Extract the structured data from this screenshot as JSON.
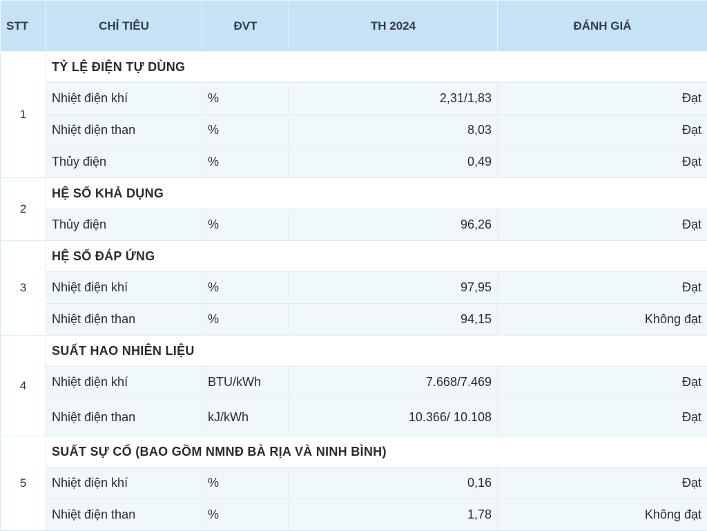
{
  "headers": {
    "stt": "STT",
    "chi_tieu": "CHỈ TIÊU",
    "dvt": "ĐVT",
    "th2024": "TH 2024",
    "danh_gia": "ĐÁNH GIÁ"
  },
  "groups": [
    {
      "stt": "1",
      "title": "TỶ LỆ ĐIỆN TỰ DÙNG",
      "rows": [
        {
          "name": "Nhiệt điện khí",
          "unit": "%",
          "value": "2,31/1,83",
          "eval": "Đạt"
        },
        {
          "name": "Nhiệt điện than",
          "unit": "%",
          "value": "8,03",
          "eval": "Đạt"
        },
        {
          "name": "Thủy điện",
          "unit": "%",
          "value": "0,49",
          "eval": "Đạt"
        }
      ]
    },
    {
      "stt": "2",
      "title": "HỆ SỐ KHẢ DỤNG",
      "rows": [
        {
          "name": "Thủy điện",
          "unit": "%",
          "value": "96,26",
          "eval": "Đạt"
        }
      ]
    },
    {
      "stt": "3",
      "title": "HỆ SỐ ĐÁP ỨNG",
      "rows": [
        {
          "name": "Nhiệt điện khí",
          "unit": "%",
          "value": "97,95",
          "eval": "Đạt"
        },
        {
          "name": "Nhiệt điện than",
          "unit": "%",
          "value": "94,15",
          "eval": "Không đạt"
        }
      ]
    },
    {
      "stt": "4",
      "title": "SUẤT HAO NHIÊN LIỆU",
      "rows": [
        {
          "name": "Nhiệt điện khí",
          "unit": "BTU/kWh",
          "value": "7.668/7.469",
          "eval": "Đạt"
        },
        {
          "name": "Nhiệt điện than",
          "unit": "kJ/kWh",
          "value": "10.366/ 10.108",
          "eval": "Đạt"
        }
      ]
    },
    {
      "stt": "5",
      "title": "SUẤT SỰ CỐ (BAO GỒM NMNĐ BÀ RỊA VÀ NINH BÌNH)",
      "rows": [
        {
          "name": "Nhiệt điện khí",
          "unit": "%",
          "value": "0,16",
          "eval": "Đạt"
        },
        {
          "name": "Nhiệt điện than",
          "unit": "%",
          "value": "1,78",
          "eval": "Không đạt"
        }
      ]
    }
  ]
}
